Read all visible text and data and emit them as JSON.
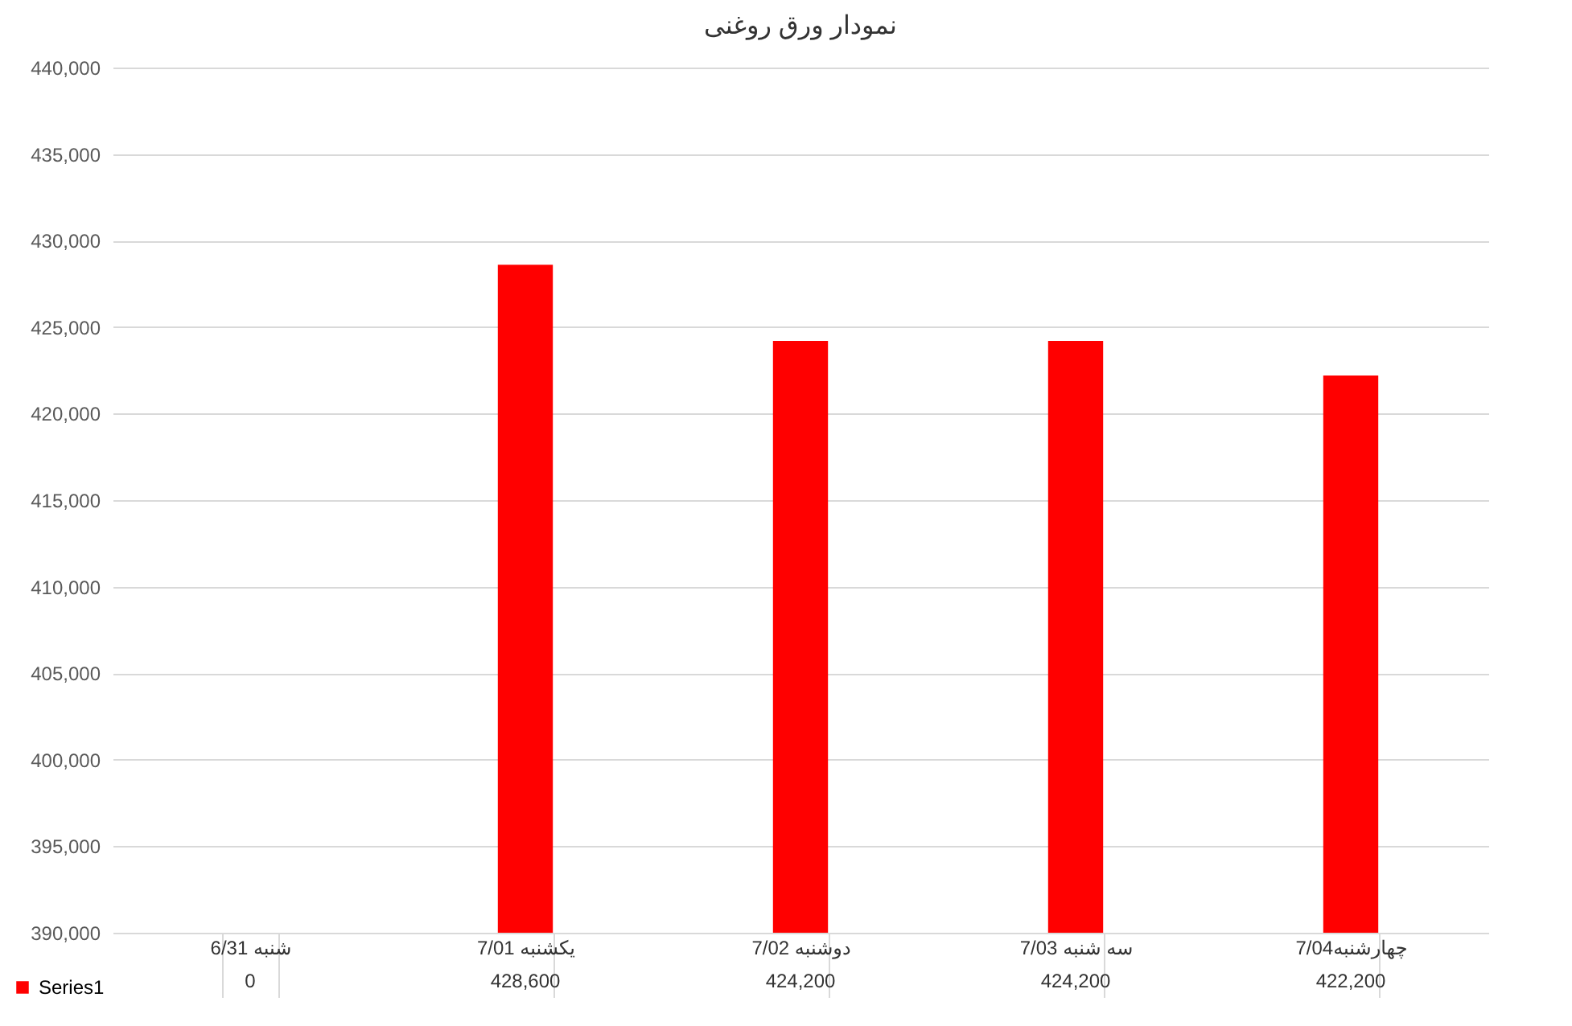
{
  "chart_data": {
    "type": "bar",
    "title": "نمودار ورق روغنی",
    "categories": [
      "شنبه 6/31",
      "یکشنبه 7/01",
      "دوشنبه 7/02",
      "سه شنبه 7/03",
      "چهارشنبه7/04"
    ],
    "series": [
      {
        "name": "Series1",
        "color": "#ff0000",
        "values": [
          null,
          428600,
          424200,
          424200,
          422200
        ],
        "value_labels": [
          "0",
          "428,600",
          "424,200",
          "424,200",
          "422,200"
        ]
      }
    ],
    "ylim": [
      390000,
      440000
    ],
    "yticks": [
      {
        "value": 390000,
        "label": "390,000"
      },
      {
        "value": 395000,
        "label": "395,000"
      },
      {
        "value": 400000,
        "label": "400,000"
      },
      {
        "value": 405000,
        "label": "405,000"
      },
      {
        "value": 410000,
        "label": "410,000"
      },
      {
        "value": 415000,
        "label": "415,000"
      },
      {
        "value": 420000,
        "label": "420,000"
      },
      {
        "value": 425000,
        "label": "425,000"
      },
      {
        "value": 430000,
        "label": "430,000"
      },
      {
        "value": 435000,
        "label": "435,000"
      },
      {
        "value": 440000,
        "label": "440,000"
      }
    ],
    "grid": "y",
    "legend": "bottom left"
  }
}
